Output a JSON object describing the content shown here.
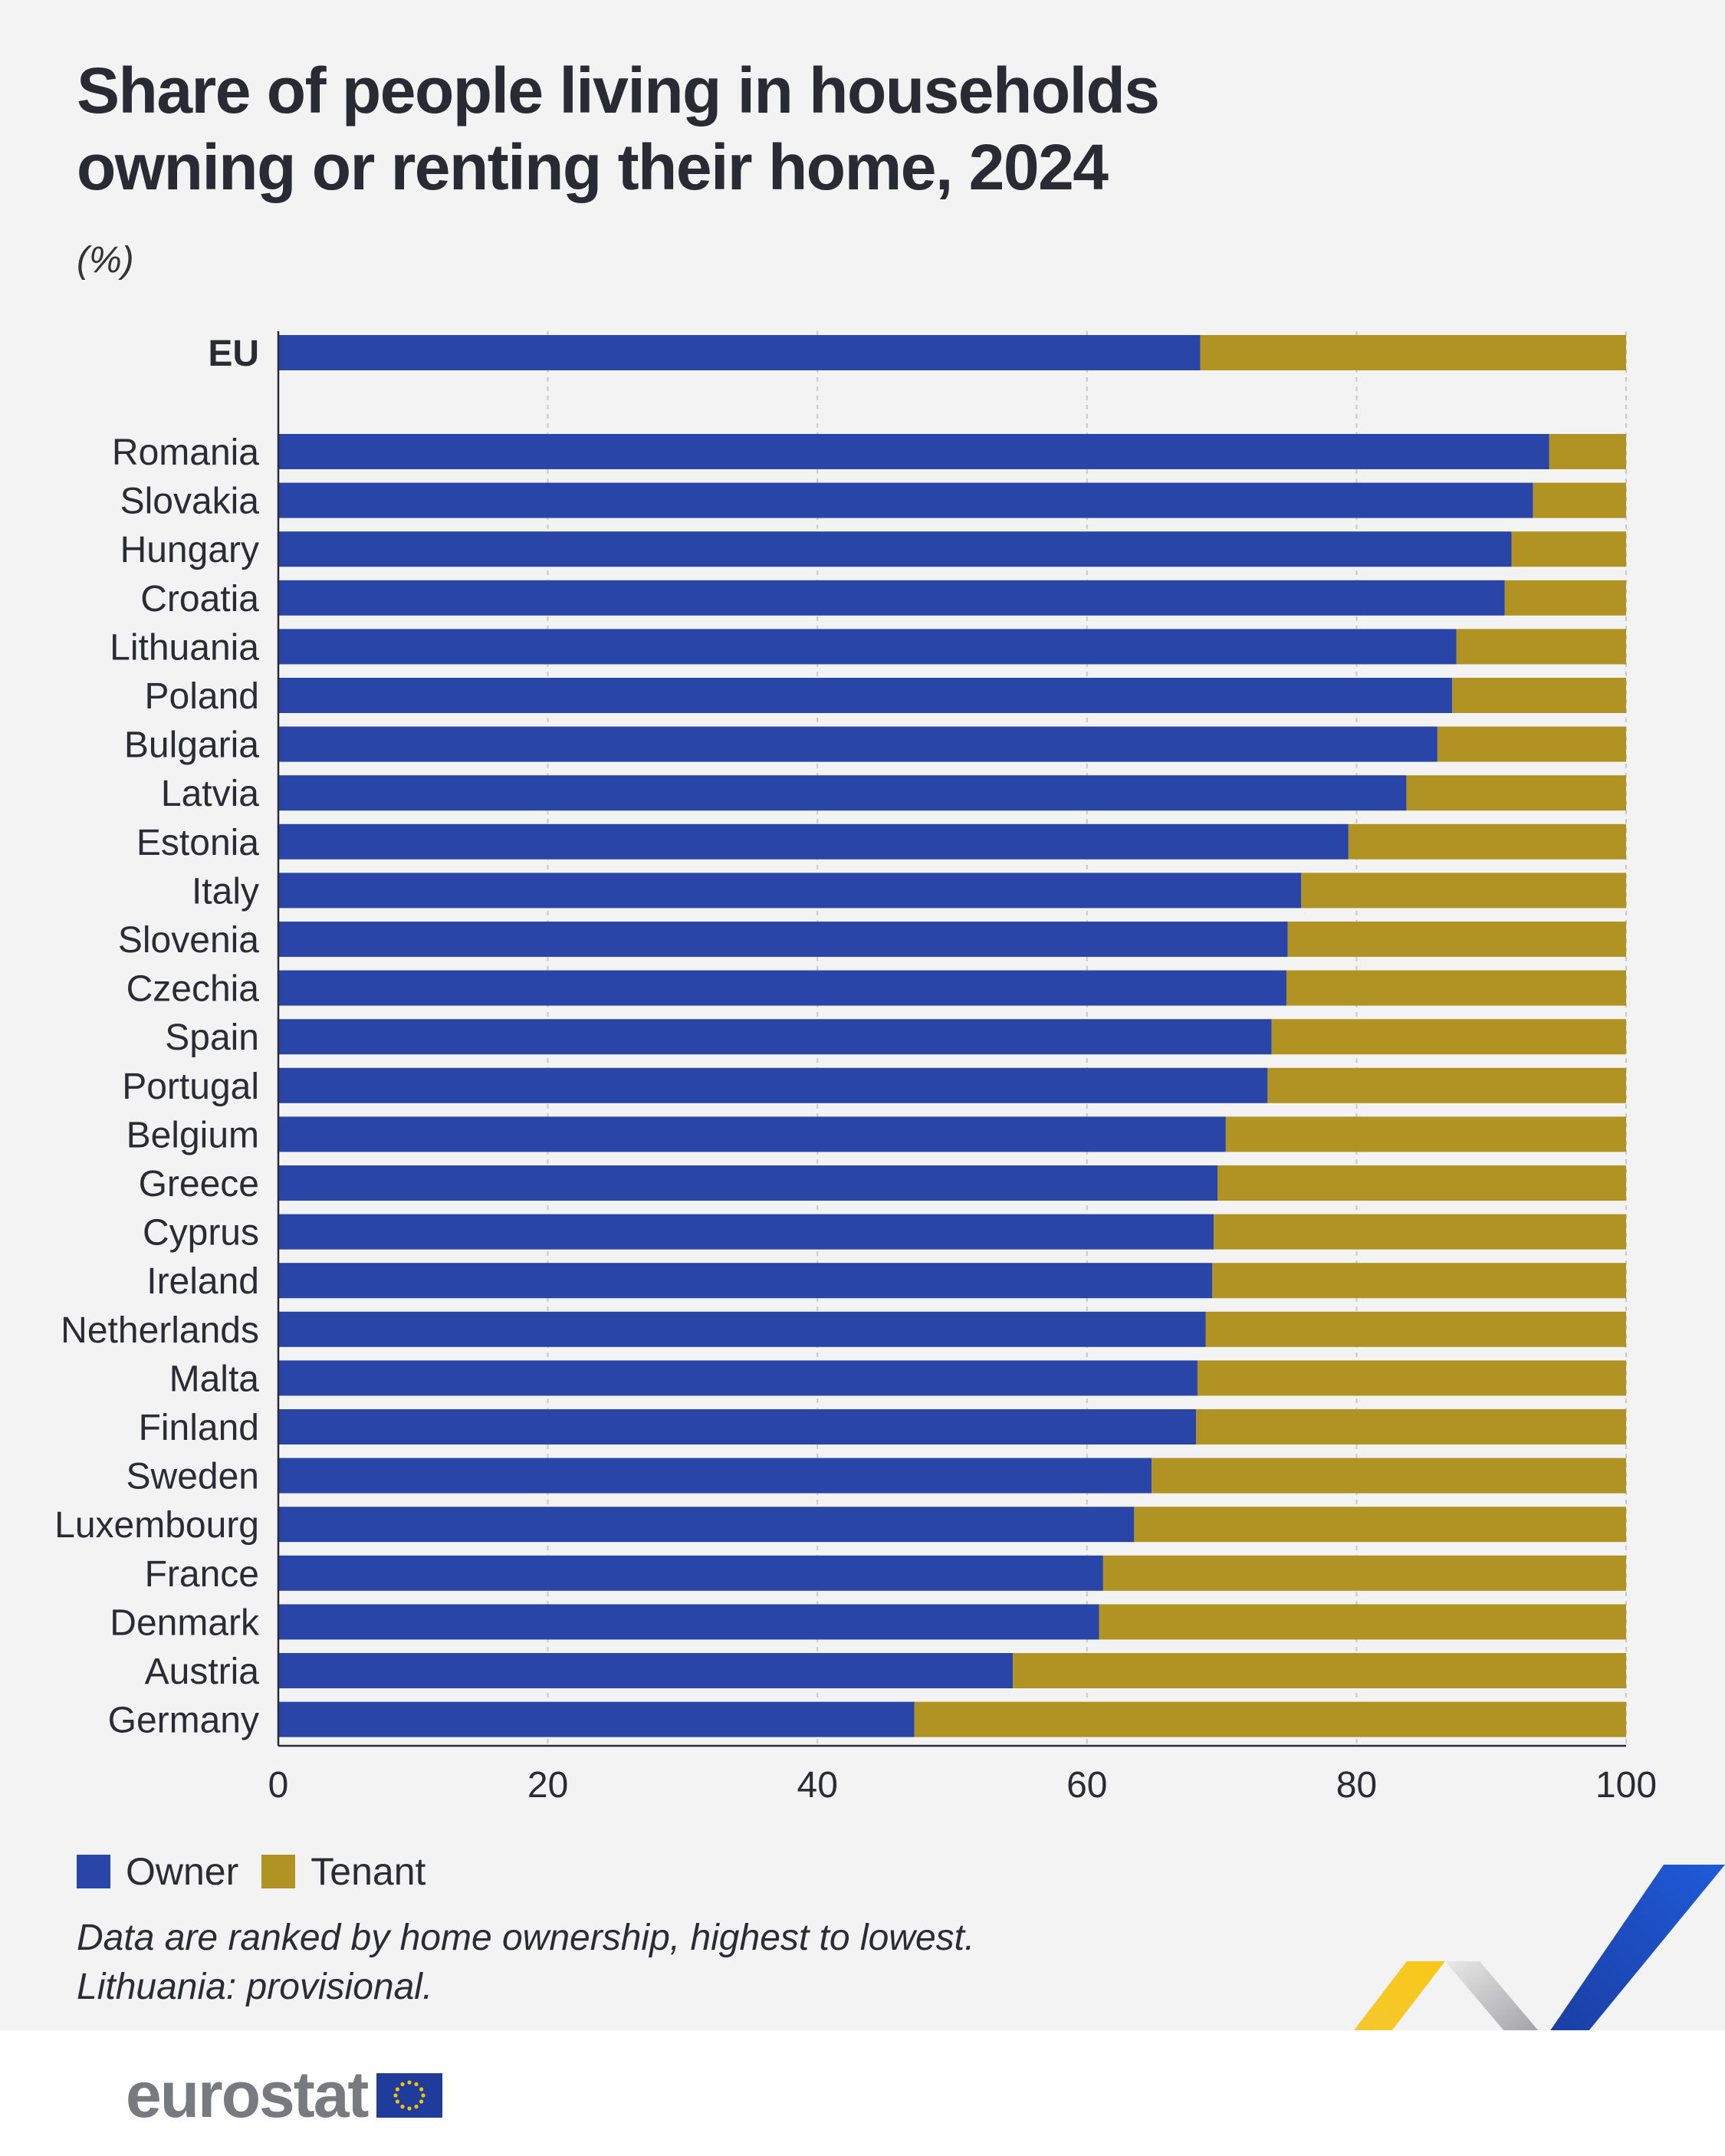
{
  "header": {
    "title": "Share of people living in households owning or renting their home, 2024",
    "unit": "(%)"
  },
  "legend": {
    "owner": "Owner",
    "tenant": "Tenant"
  },
  "notes": [
    "Data are ranked by home ownership, highest to lowest.",
    "Lithuania: provisional."
  ],
  "footer": {
    "logo_text": "eurostat"
  },
  "colors": {
    "owner": "#2a45a8",
    "tenant": "#b19324",
    "background": "#f3f3f3"
  },
  "chart_data": {
    "type": "bar",
    "orientation": "horizontal",
    "stacked": true,
    "xlim": [
      0,
      100
    ],
    "xticks": [
      0,
      20,
      40,
      60,
      80,
      100
    ],
    "grid": true,
    "legend_position": "bottom-left",
    "categories": [
      "EU",
      "Romania",
      "Slovakia",
      "Hungary",
      "Croatia",
      "Lithuania",
      "Poland",
      "Bulgaria",
      "Latvia",
      "Estonia",
      "Italy",
      "Slovenia",
      "Czechia",
      "Spain",
      "Portugal",
      "Belgium",
      "Greece",
      "Cyprus",
      "Ireland",
      "Netherlands",
      "Malta",
      "Finland",
      "Sweden",
      "Luxembourg",
      "France",
      "Denmark",
      "Austria",
      "Germany"
    ],
    "series": [
      {
        "name": "Owner",
        "values": [
          68.4,
          94.3,
          93.1,
          91.5,
          91.0,
          87.4,
          87.1,
          86.0,
          83.7,
          79.4,
          75.9,
          74.9,
          74.8,
          73.7,
          73.4,
          70.3,
          69.7,
          69.4,
          69.3,
          68.8,
          68.2,
          68.1,
          64.8,
          63.5,
          61.2,
          60.9,
          54.5,
          47.2
        ]
      },
      {
        "name": "Tenant",
        "values": [
          31.6,
          5.7,
          6.9,
          8.5,
          9.0,
          12.6,
          12.9,
          14.0,
          16.3,
          20.6,
          24.1,
          25.1,
          25.2,
          26.3,
          26.6,
          29.7,
          30.3,
          30.6,
          30.7,
          31.2,
          31.8,
          31.9,
          35.2,
          36.5,
          38.8,
          39.1,
          45.5,
          52.8
        ]
      }
    ]
  }
}
